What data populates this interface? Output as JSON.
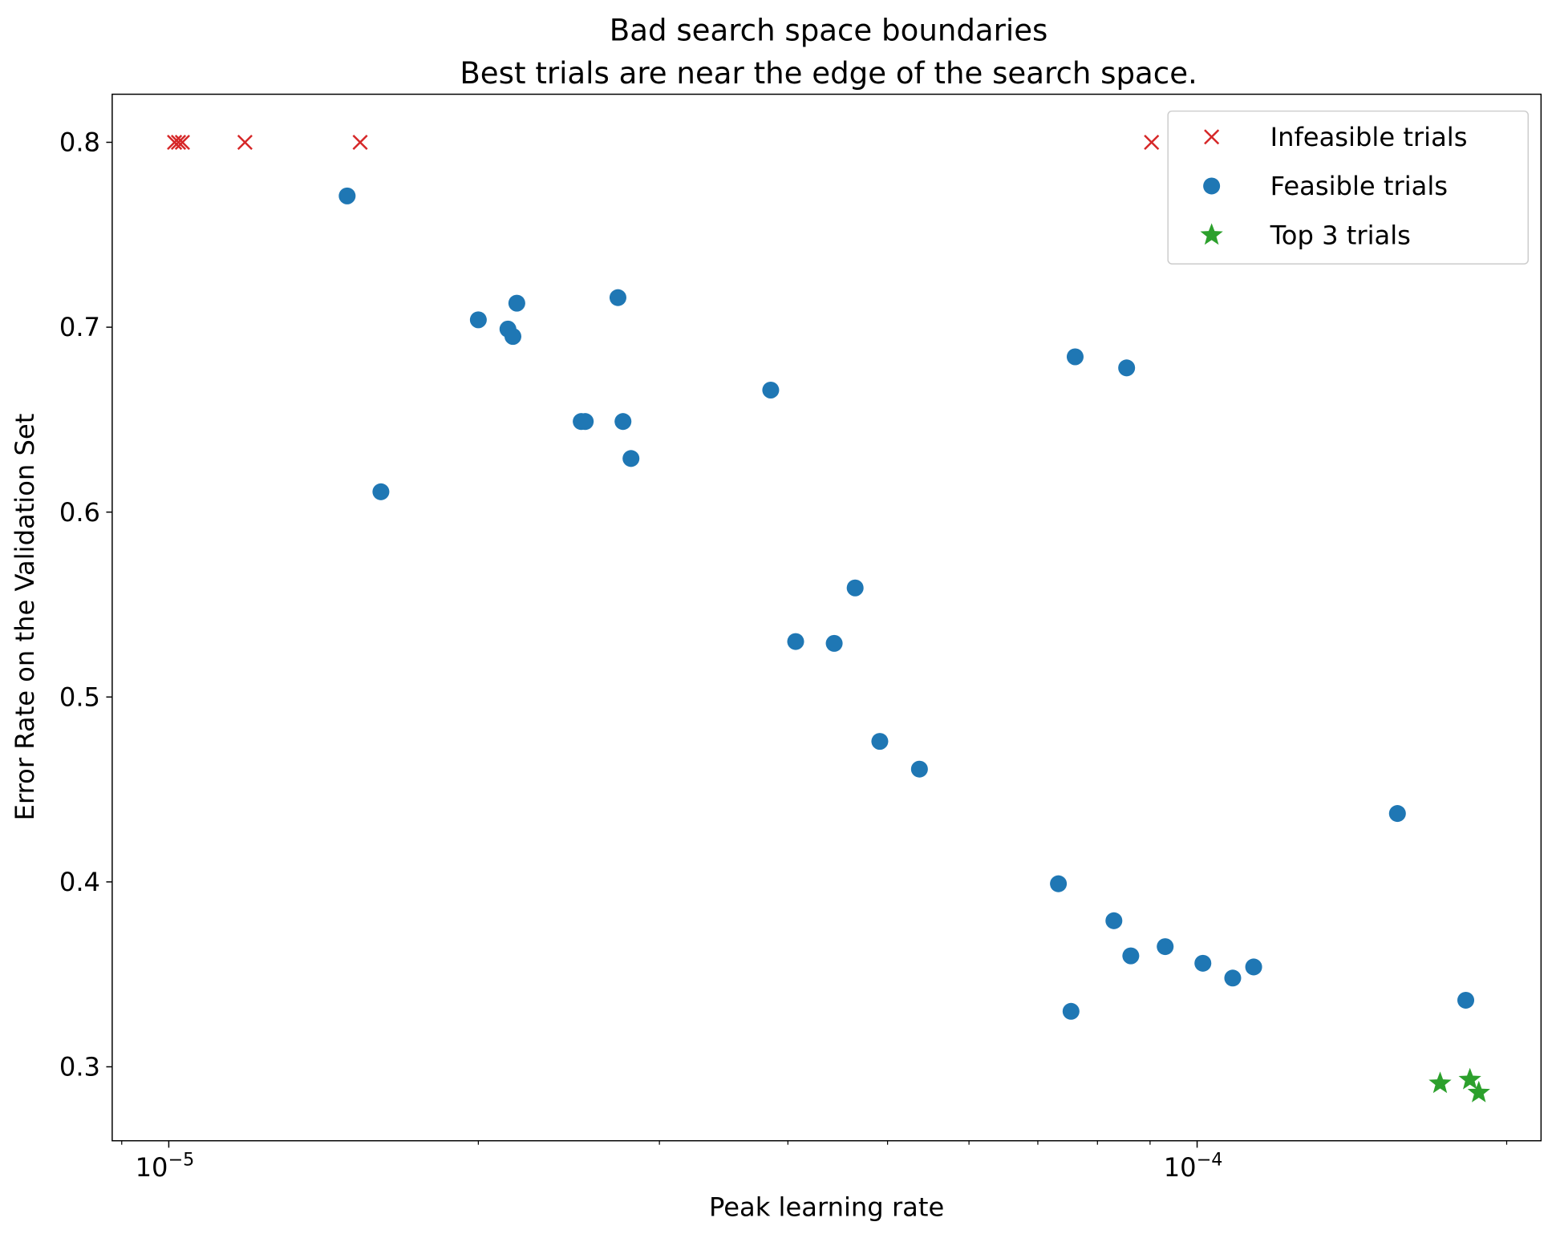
{
  "chart_data": {
    "type": "scatter",
    "title": "Bad search space boundaries",
    "subtitle": "Best trials are near the edge of the search space.",
    "xlabel": "Peak learning rate",
    "ylabel": "Error Rate on the Validation Set",
    "xscale": "log",
    "xlim": [
      8.81e-06,
      0.000216
    ],
    "ylim": [
      0.26,
      0.826
    ],
    "x_tick_labels": [
      {
        "value": 1e-05,
        "base": "10",
        "exp": "−5"
      },
      {
        "value": 0.0001,
        "base": "10",
        "exp": "−4"
      }
    ],
    "y_ticks": [
      0.3,
      0.4,
      0.5,
      0.6,
      0.7,
      0.8
    ],
    "y_tick_labels": [
      "0.3",
      "0.4",
      "0.5",
      "0.6",
      "0.7",
      "0.8"
    ],
    "grid": false,
    "legend_position": "top-right",
    "series": [
      {
        "name": "Infeasible trials",
        "marker": "x",
        "color": "#d62728",
        "x": [
          1.013e-05,
          1.022e-05,
          1.031e-05,
          1.186e-05,
          1.535e-05,
          9.03e-05
        ],
        "y": [
          0.8,
          0.8,
          0.8,
          0.8,
          0.8,
          0.8
        ]
      },
      {
        "name": "Feasible trials",
        "marker": "circle",
        "color": "#1f77b4",
        "x": [
          1.491e-05,
          1.608e-05,
          2e-05,
          2.137e-05,
          2.161e-05,
          2.18e-05,
          2.518e-05,
          2.541e-05,
          2.734e-05,
          2.765e-05,
          2.815e-05,
          3.849e-05,
          4.07e-05,
          4.437e-05,
          4.65e-05,
          4.914e-05,
          5.37e-05,
          7.33e-05,
          7.54e-05,
          7.61e-05,
          8.3e-05,
          8.54e-05,
          8.62e-05,
          9.31e-05,
          0.0001013,
          0.0001083,
          0.0001135,
          0.0001566,
          0.0001825
        ],
        "y": [
          0.771,
          0.611,
          0.704,
          0.699,
          0.695,
          0.713,
          0.649,
          0.649,
          0.716,
          0.649,
          0.629,
          0.666,
          0.53,
          0.529,
          0.559,
          0.476,
          0.461,
          0.399,
          0.33,
          0.684,
          0.379,
          0.678,
          0.36,
          0.365,
          0.356,
          0.348,
          0.354,
          0.437,
          0.336
        ]
      },
      {
        "name": "Top 3 trials",
        "marker": "star",
        "color": "#2ca02c",
        "x": [
          0.0001723,
          0.0001842,
          0.0001879
        ],
        "y": [
          0.291,
          0.293,
          0.286
        ]
      }
    ]
  }
}
